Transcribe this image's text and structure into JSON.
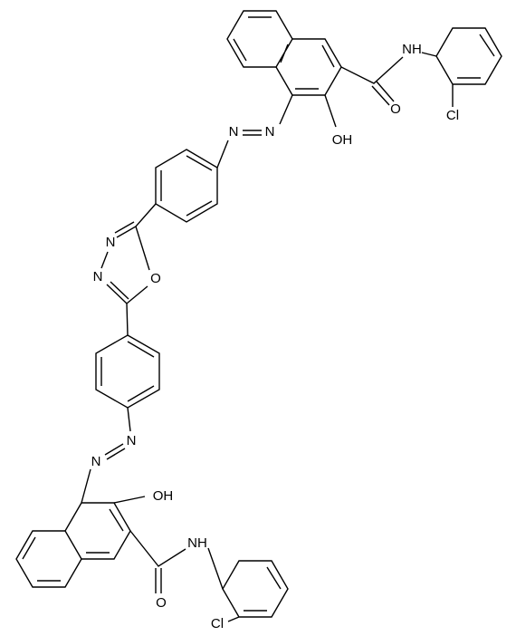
{
  "atoms": [
    {
      "label": "N"
    },
    {
      "label": "N"
    },
    {
      "label": "OH"
    },
    {
      "label": "O"
    },
    {
      "label": "NH"
    },
    {
      "label": "Cl"
    },
    {
      "label": "N"
    },
    {
      "label": "N"
    },
    {
      "label": "O"
    },
    {
      "label": "N"
    },
    {
      "label": "N"
    },
    {
      "label": "OH"
    },
    {
      "label": "NH"
    },
    {
      "label": "O"
    },
    {
      "label": "Cl"
    }
  ]
}
